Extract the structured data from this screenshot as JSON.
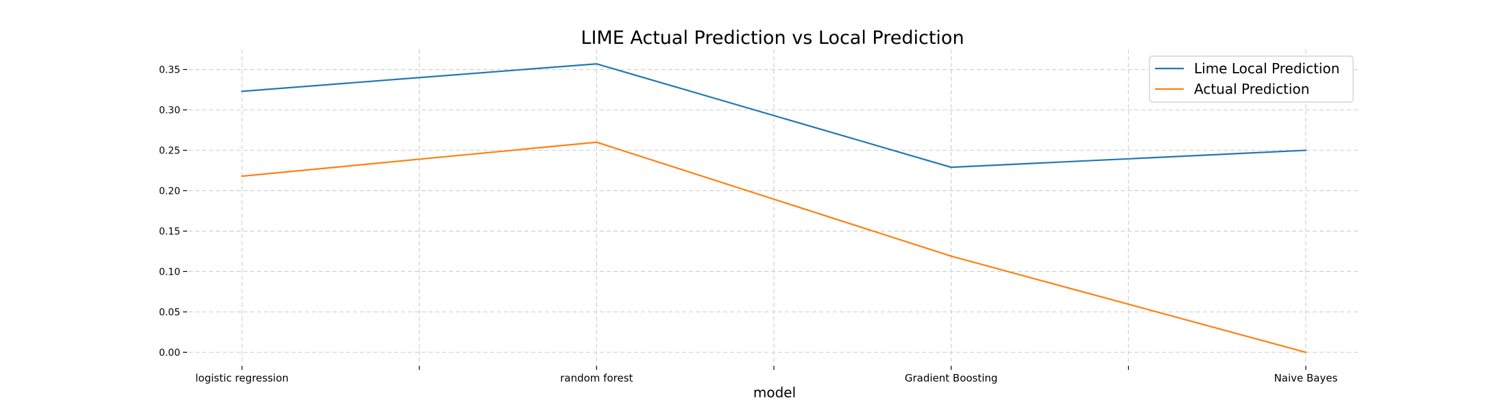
{
  "chart_data": {
    "type": "line",
    "title": "LIME Actual Prediction vs Local Prediction",
    "xlabel": "model",
    "ylabel": "",
    "categories": [
      "logistic regression",
      "random forest",
      "Gradient Boosting",
      "Naive Bayes"
    ],
    "series": [
      {
        "name": "Lime Local Prediction",
        "values": [
          0.323,
          0.357,
          0.229,
          0.25
        ],
        "color": "#1f77b4"
      },
      {
        "name": "Actual Prediction",
        "values": [
          0.218,
          0.26,
          0.119,
          0.0
        ],
        "color": "#ff7f0e"
      }
    ],
    "yticks": [
      "0.00",
      "0.05",
      "0.10",
      "0.15",
      "0.20",
      "0.25",
      "0.30",
      "0.35"
    ],
    "ylim": [
      -0.015,
      0.375
    ],
    "grid": true,
    "legend_position": "top-right"
  }
}
